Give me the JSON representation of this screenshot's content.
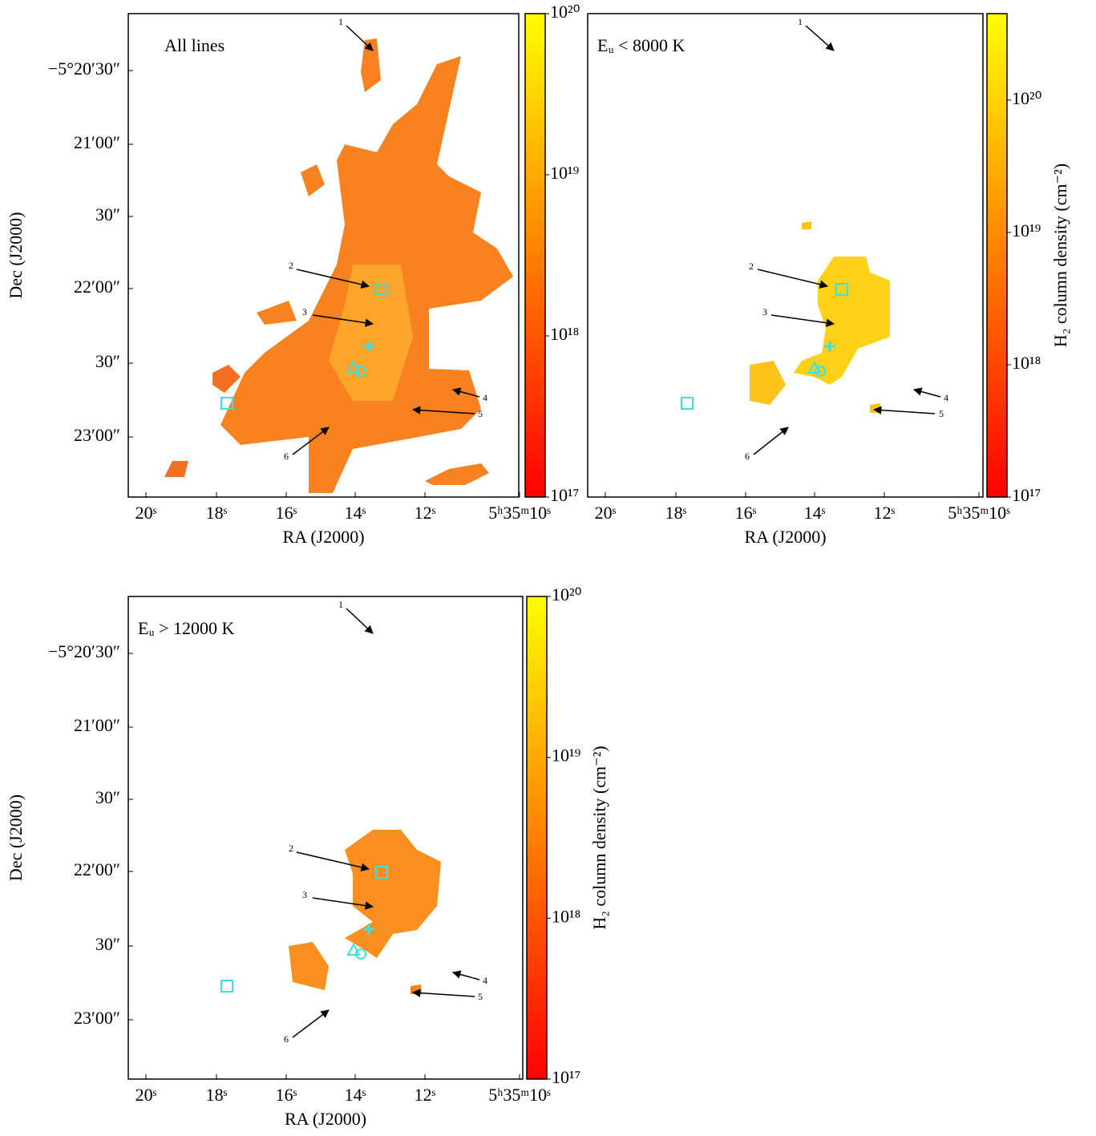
{
  "panels": [
    {
      "annotation": "All lines",
      "xlabel": "RA (J2000)",
      "ylabel": "Dec (J2000)",
      "xticks": [
        "20ˢ",
        "18ˢ",
        "16ˢ",
        "14ˢ",
        "12ˢ",
        "5ʰ35ᵐ10ˢ"
      ],
      "yticks": [
        "−5°20′30″",
        "21′00″",
        "30″",
        "22′00″",
        "30″",
        "23′00″"
      ],
      "colorbar": {
        "log": true,
        "lim": [
          1e+17,
          1e+20
        ],
        "ticks": [
          {
            "value": 1e+17,
            "label": "10¹⁷"
          },
          {
            "value": 1e+18,
            "label": "10¹⁸"
          },
          {
            "value": 1e+19,
            "label": "10¹⁹"
          },
          {
            "value": 1e+20,
            "label": "10²⁰"
          }
        ]
      },
      "arrow_labels": [
        "1",
        "2",
        "3",
        "4",
        "5",
        "6"
      ]
    },
    {
      "annotation": "Eᵤ < 8000 K",
      "xlabel": "RA (J2000)",
      "xticks": [
        "20ˢ",
        "18ˢ",
        "16ˢ",
        "14ˢ",
        "12ˢ",
        "5ʰ35ᵐ10ˢ"
      ],
      "colorbar": {
        "log": true,
        "lim": [
          1e+17,
          4.5e+20
        ],
        "label": "H₂ column density (cm⁻²)",
        "ticks": [
          {
            "value": 1e+17,
            "label": "10¹⁷"
          },
          {
            "value": 1e+18,
            "label": "10¹⁸"
          },
          {
            "value": 1e+19,
            "label": "10¹⁹"
          },
          {
            "value": 1e+20,
            "label": "10²⁰"
          }
        ]
      },
      "arrow_labels": [
        "1",
        "2",
        "3",
        "4",
        "5",
        "6"
      ]
    },
    {
      "annotation": "Eᵤ > 12000 K",
      "xlabel": "RA (J2000)",
      "ylabel": "Dec (J2000)",
      "xticks": [
        "20ˢ",
        "18ˢ",
        "16ˢ",
        "14ˢ",
        "12ˢ",
        "5ʰ35ᵐ10ˢ"
      ],
      "yticks": [
        "−5°20′30″",
        "21′00″",
        "30″",
        "22′00″",
        "30″",
        "23′00″"
      ],
      "colorbar": {
        "log": true,
        "lim": [
          1e+17,
          1e+20
        ],
        "label": "H₂ column density (cm⁻²)",
        "ticks": [
          {
            "value": 1e+17,
            "label": "10¹⁷"
          },
          {
            "value": 1e+18,
            "label": "10¹⁸"
          },
          {
            "value": 1e+19,
            "label": "10¹⁹"
          },
          {
            "value": 1e+20,
            "label": "10²⁰"
          }
        ]
      },
      "arrow_labels": [
        "1",
        "2",
        "3",
        "4",
        "5",
        "6"
      ]
    }
  ]
}
